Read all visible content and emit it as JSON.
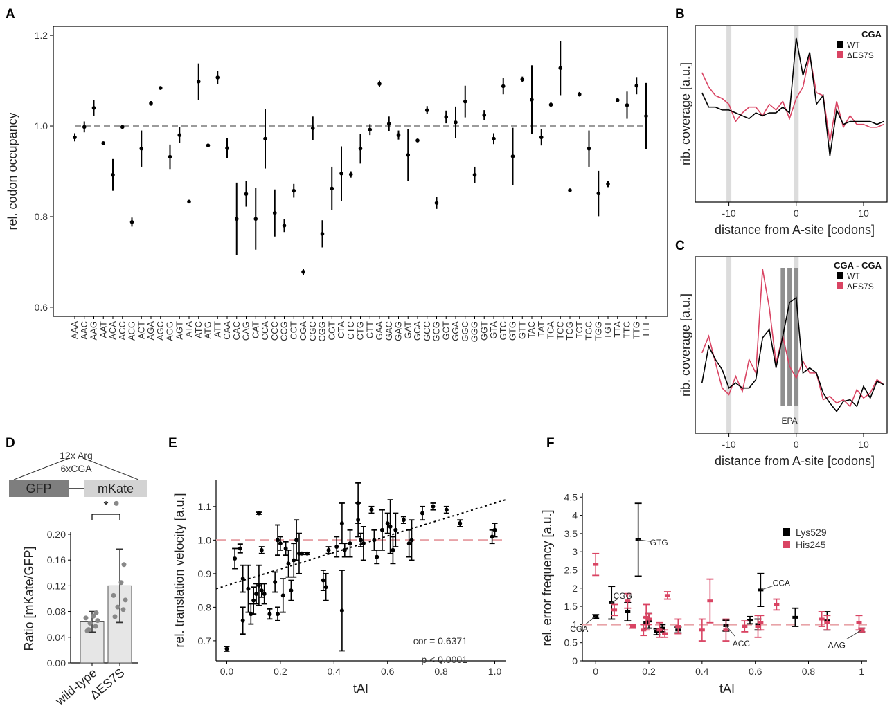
{
  "chart_data": [
    {
      "panel": "A",
      "type": "scatter",
      "ylabel": "rel. codon occupancy",
      "ylim": [
        0.58,
        1.22
      ],
      "yticks": [
        "0.6",
        "0.8",
        "1.0",
        "1.2"
      ],
      "reference_line": 1.0,
      "categories": [
        "AAA",
        "AAC",
        "AAG",
        "AAT",
        "ACA",
        "ACC",
        "ACG",
        "ACT",
        "AGA",
        "AGC",
        "AGG",
        "AGT",
        "ATA",
        "ATC",
        "ATG",
        "ATT",
        "CAA",
        "CAC",
        "CAG",
        "CAT",
        "CCA",
        "CCC",
        "CCG",
        "CCT",
        "CGA",
        "CGC",
        "CGG",
        "CGT",
        "CTA",
        "CTC",
        "CTG",
        "CTT",
        "GAA",
        "GAC",
        "GAG",
        "GAT",
        "GCA",
        "GCC",
        "GCG",
        "GCT",
        "GGA",
        "GGC",
        "GGG",
        "GGT",
        "GTA",
        "GTC",
        "GTG",
        "GTT",
        "TAC",
        "TAT",
        "TCA",
        "TCC",
        "TCG",
        "TCT",
        "TGC",
        "TGG",
        "TGT",
        "TTA",
        "TTC",
        "TTG",
        "TTT"
      ],
      "values": [
        0.975,
        0.998,
        1.04,
        0.962,
        0.892,
        0.998,
        0.788,
        0.95,
        1.05,
        1.084,
        0.932,
        0.98,
        0.833,
        1.098,
        0.957,
        1.107,
        0.951,
        0.795,
        0.85,
        0.795,
        0.972,
        0.808,
        0.78,
        0.857,
        0.678,
        0.995,
        0.762,
        0.862,
        0.895,
        0.893,
        0.95,
        0.992,
        1.093,
        1.005,
        0.98,
        0.936,
        0.968,
        1.035,
        0.83,
        1.02,
        1.008,
        1.054,
        0.892,
        1.024,
        0.972,
        1.088,
        0.933,
        1.103,
        1.058,
        0.975,
        1.047,
        1.128,
        0.858,
        1.07,
        0.95,
        0.851,
        0.872,
        1.057,
        1.046,
        1.089,
        1.022
      ],
      "errors": [
        0.009,
        0.012,
        0.017,
        0.004,
        0.035,
        0.004,
        0.01,
        0.04,
        0.005,
        0.004,
        0.027,
        0.017,
        0.004,
        0.04,
        0.004,
        0.014,
        0.022,
        0.08,
        0.028,
        0.068,
        0.066,
        0.052,
        0.014,
        0.015,
        0.007,
        0.026,
        0.03,
        0.048,
        0.06,
        0.007,
        0.033,
        0.012,
        0.007,
        0.016,
        0.01,
        0.057,
        0.004,
        0.009,
        0.013,
        0.014,
        0.035,
        0.035,
        0.018,
        0.011,
        0.012,
        0.018,
        0.063,
        0.006,
        0.076,
        0.018,
        0.005,
        0.06,
        0.004,
        0.005,
        0.04,
        0.05,
        0.007,
        0.004,
        0.03,
        0.019,
        0.073
      ]
    },
    {
      "panel": "B",
      "type": "line",
      "title": "CGA",
      "xlabel": "distance from A-site [codons]",
      "ylabel": "rib. coverage [a.u.]",
      "xlim": [
        -15,
        13.5
      ],
      "xticks": [
        "-10",
        "0",
        "10"
      ],
      "highlight_x": [
        -10,
        0
      ],
      "x": [
        -14,
        -13,
        -12,
        -11,
        -10,
        -9,
        -8,
        -7,
        -6,
        -5,
        -4,
        -3,
        -2,
        -1,
        0,
        1,
        2,
        3,
        4,
        5,
        6,
        7,
        8,
        9,
        10,
        11,
        12,
        13
      ],
      "series": [
        {
          "name": "WT",
          "color": "#000000",
          "values": [
            0.38,
            0.33,
            0.33,
            0.32,
            0.32,
            0.31,
            0.3,
            0.29,
            0.31,
            0.3,
            0.31,
            0.31,
            0.33,
            0.31,
            0.57,
            0.44,
            0.52,
            0.34,
            0.37,
            0.16,
            0.32,
            0.27,
            0.28,
            0.28,
            0.28,
            0.28,
            0.27,
            0.28
          ]
        },
        {
          "name": "ΔES7S",
          "color": "#d94463",
          "values": [
            0.45,
            0.4,
            0.37,
            0.36,
            0.34,
            0.28,
            0.31,
            0.33,
            0.33,
            0.3,
            0.34,
            0.32,
            0.35,
            0.29,
            0.36,
            0.4,
            0.51,
            0.38,
            0.37,
            0.21,
            0.35,
            0.26,
            0.3,
            0.27,
            0.27,
            0.26,
            0.26,
            0.27
          ]
        }
      ]
    },
    {
      "panel": "C",
      "type": "line",
      "title": "CGA - CGA",
      "xlabel": "distance from A-site [codons]",
      "ylabel": "rib. coverage [a.u.]",
      "annotation": "EPA",
      "xlim": [
        -15,
        13.5
      ],
      "xticks": [
        "-10",
        "0",
        "10"
      ],
      "highlight_x": [
        -10,
        0
      ],
      "epa_x": [
        -2,
        -1,
        0
      ],
      "x": [
        -14,
        -13,
        -12,
        -11,
        -10,
        -9,
        -8,
        -7,
        -6,
        -5,
        -4,
        -3,
        -2,
        -1,
        0,
        1,
        2,
        3,
        4,
        5,
        6,
        7,
        8,
        9,
        10,
        11,
        12,
        13
      ],
      "series": [
        {
          "name": "WT",
          "color": "#000000",
          "values": [
            0.3,
            0.52,
            0.44,
            0.38,
            0.27,
            0.3,
            0.27,
            0.27,
            0.32,
            0.57,
            0.62,
            0.39,
            0.58,
            0.78,
            0.81,
            0.36,
            0.39,
            0.36,
            0.24,
            0.18,
            0.13,
            0.19,
            0.2,
            0.16,
            0.28,
            0.21,
            0.31,
            0.29
          ]
        },
        {
          "name": "ΔES7S",
          "color": "#d94463",
          "values": [
            0.48,
            0.58,
            0.42,
            0.27,
            0.23,
            0.34,
            0.25,
            0.44,
            0.36,
            0.98,
            0.75,
            0.42,
            0.58,
            0.4,
            0.33,
            0.43,
            0.36,
            0.36,
            0.2,
            0.22,
            0.18,
            0.2,
            0.16,
            0.26,
            0.21,
            0.24,
            0.32,
            0.29
          ]
        }
      ]
    },
    {
      "panel": "D",
      "type": "bar",
      "construct": {
        "top_label": "12x Arg",
        "sub_label": "6xCGA",
        "left_block": "GFP",
        "right_block": "mKate"
      },
      "significance": "*",
      "ylabel": "Ratio [mKate/GFP]",
      "ylim": [
        0,
        0.2
      ],
      "yticks": [
        "0.00",
        "0.04",
        "0.08",
        "0.12",
        "0.16",
        "0.20"
      ],
      "categories": [
        "wild-type",
        "ΔES7S"
      ],
      "values": [
        0.064,
        0.12
      ],
      "errors": [
        0.016,
        0.057
      ],
      "points": [
        [
          0.05,
          0.057,
          0.062,
          0.066,
          0.07,
          0.073,
          0.078,
          0.052
        ],
        [
          0.072,
          0.083,
          0.087,
          0.098,
          0.105,
          0.125,
          0.153,
          0.248
        ]
      ]
    },
    {
      "panel": "E",
      "type": "scatter",
      "xlabel": "tAI",
      "ylabel": "rel. translation velocity [a.u.]",
      "xlim": [
        -0.04,
        1.04
      ],
      "ylim": [
        0.64,
        1.18
      ],
      "xticks": [
        "0.0",
        "0.2",
        "0.4",
        "0.6",
        "0.8",
        "1.0"
      ],
      "yticks": [
        "0.7",
        "0.8",
        "0.9",
        "1.0",
        "1.1"
      ],
      "reference_line": 1.0,
      "annotations": [
        "cor =  0.6371",
        "p < 0.0001"
      ],
      "trend": {
        "x": [
          -0.04,
          1.04
        ],
        "y": [
          0.855,
          1.12
        ]
      },
      "x": [
        0.0,
        0.03,
        0.05,
        0.06,
        0.06,
        0.08,
        0.09,
        0.1,
        0.11,
        0.12,
        0.12,
        0.13,
        0.13,
        0.14,
        0.16,
        0.18,
        0.19,
        0.19,
        0.2,
        0.21,
        0.22,
        0.23,
        0.24,
        0.25,
        0.26,
        0.27,
        0.28,
        0.3,
        0.36,
        0.37,
        0.38,
        0.41,
        0.43,
        0.43,
        0.44,
        0.46,
        0.49,
        0.49,
        0.5,
        0.51,
        0.54,
        0.55,
        0.56,
        0.58,
        0.6,
        0.61,
        0.62,
        0.63,
        0.66,
        0.68,
        0.69,
        0.73,
        0.77,
        0.82,
        0.87,
        0.99,
        1.0
      ],
      "y": [
        0.676,
        0.945,
        0.975,
        0.885,
        0.76,
        0.855,
        0.78,
        0.82,
        0.84,
        1.08,
        0.865,
        0.97,
        0.85,
        0.84,
        0.78,
        0.875,
        1.0,
        0.78,
        0.99,
        0.835,
        0.975,
        0.93,
        0.85,
        0.94,
        1.0,
        0.96,
        0.96,
        0.96,
        0.88,
        0.86,
        0.97,
        0.98,
        1.05,
        0.79,
        0.97,
        0.99,
        1.06,
        1.11,
        1.0,
        0.99,
        1.09,
        1.0,
        0.95,
        1.03,
        1.05,
        1.04,
        0.97,
        1.03,
        1.06,
        0.99,
        1.0,
        1.08,
        1.1,
        1.09,
        1.05,
        1.01,
        1.03
      ],
      "errors": [
        0.007,
        0.03,
        0.013,
        0.04,
        0.04,
        0.07,
        0.03,
        0.04,
        0.03,
        0.003,
        0.06,
        0.01,
        0.02,
        0.03,
        0.015,
        0.03,
        0.045,
        0.02,
        0.02,
        0.05,
        0.02,
        0.04,
        0.03,
        0.05,
        0.06,
        0.06,
        0.003,
        0.003,
        0.03,
        0.04,
        0.01,
        0.03,
        0.06,
        0.12,
        0.02,
        0.04,
        0.05,
        0.06,
        0.02,
        0.05,
        0.01,
        0.03,
        0.02,
        0.06,
        0.03,
        0.08,
        0.04,
        0.05,
        0.01,
        0.04,
        0.06,
        0.02,
        0.01,
        0.01,
        0.01,
        0.02,
        0.02
      ]
    },
    {
      "panel": "F",
      "type": "scatter",
      "xlabel": "tAI",
      "ylabel": "rel. error frequency [a.u.]",
      "xlim": [
        -0.05,
        1.02
      ],
      "ylim": [
        0,
        4.6
      ],
      "xticks": [
        "0",
        "0.2",
        "0.4",
        "0.6",
        "0.8",
        "1"
      ],
      "yticks": [
        "0",
        "0.5",
        "1",
        "1.5",
        "2",
        "2.5",
        "3",
        "3.5",
        "4",
        "4.5"
      ],
      "reference_line": 1.0,
      "labels": [
        {
          "text": "CGA",
          "x": 0.0,
          "y": 1.22
        },
        {
          "text": "CGG",
          "x": 0.06,
          "y": 1.6
        },
        {
          "text": "GTG",
          "x": 0.16,
          "y": 3.33
        },
        {
          "text": "ACC",
          "x": 0.49,
          "y": 0.97
        },
        {
          "text": "CCA",
          "x": 0.62,
          "y": 1.95
        },
        {
          "text": "AAG",
          "x": 1.0,
          "y": 0.85
        }
      ],
      "series": [
        {
          "name": "Lys529",
          "color": "#000000",
          "x": [
            0.0,
            0.06,
            0.12,
            0.16,
            0.19,
            0.2,
            0.23,
            0.25,
            0.31,
            0.49,
            0.58,
            0.61,
            0.62,
            0.75,
            0.87,
            1.0
          ],
          "y": [
            1.22,
            1.6,
            1.35,
            3.33,
            1.05,
            1.1,
            0.8,
            0.9,
            0.85,
            0.97,
            1.12,
            1.0,
            1.95,
            1.2,
            1.1,
            0.85
          ],
          "errors": [
            0.05,
            0.45,
            0.25,
            1.0,
            0.15,
            0.2,
            0.08,
            0.1,
            0.08,
            0.15,
            0.1,
            0.15,
            0.45,
            0.25,
            0.25,
            0.05
          ]
        },
        {
          "name": "His245",
          "color": "#d94463",
          "x": [
            0.0,
            0.07,
            0.12,
            0.14,
            0.18,
            0.19,
            0.2,
            0.24,
            0.26,
            0.27,
            0.31,
            0.4,
            0.43,
            0.49,
            0.56,
            0.61,
            0.62,
            0.68,
            0.85,
            0.87,
            0.99,
            1.0
          ],
          "y": [
            2.65,
            1.4,
            1.65,
            0.95,
            0.85,
            1.2,
            1.15,
            0.85,
            0.75,
            1.8,
            0.95,
            0.85,
            1.65,
            0.85,
            0.95,
            0.95,
            1.05,
            1.55,
            1.15,
            1.05,
            1.05,
            0.85
          ],
          "errors": [
            0.3,
            0.15,
            0.2,
            0.05,
            0.15,
            0.35,
            0.15,
            0.2,
            0.1,
            0.1,
            0.2,
            0.3,
            0.6,
            0.3,
            0.15,
            0.3,
            0.2,
            0.15,
            0.2,
            0.2,
            0.2,
            0.05
          ]
        }
      ]
    }
  ]
}
